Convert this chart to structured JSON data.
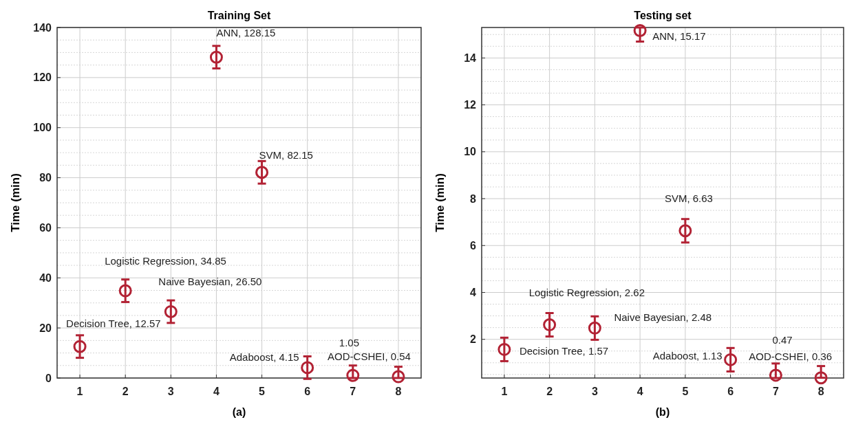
{
  "chart_data": [
    {
      "type": "scatter",
      "title": "Training Set",
      "xlabel": "(a)",
      "ylabel": "Time (min)",
      "x": [
        1,
        2,
        3,
        4,
        5,
        6,
        7,
        8
      ],
      "xlim": [
        0.5,
        8.5
      ],
      "xticks": [
        1,
        2,
        3,
        4,
        5,
        6,
        7,
        8
      ],
      "ylim": [
        0,
        140
      ],
      "yticks": [
        0,
        20,
        40,
        60,
        80,
        100,
        120,
        140
      ],
      "grid": true,
      "marker": "circle",
      "series": [
        {
          "color": "#b22234",
          "values": [
            12.57,
            34.85,
            26.5,
            128.15,
            82.15,
            4.15,
            1.05,
            0.54
          ],
          "errors": [
            4.5,
            4.5,
            4.5,
            4.5,
            4.5,
            4.5,
            [
              0,
              5
            ],
            [
              0,
              4.5
            ]
          ]
        }
      ],
      "annotations": [
        {
          "text": "Decision Tree, 12.57",
          "x": 1,
          "y": 12.57
        },
        {
          "text": "Logistic Regression, 34.85",
          "x": 2,
          "y": 34.85
        },
        {
          "text": "Naive Bayesian, 26.50",
          "x": 3,
          "y": 26.5
        },
        {
          "text": "ANN, 128.15",
          "x": 4,
          "y": 128.15
        },
        {
          "text": "SVM, 82.15",
          "x": 5,
          "y": 82.15
        },
        {
          "text": "Adaboost, 4.15",
          "x": 6,
          "y": 4.15
        },
        {
          "text": "1.05",
          "x": 7,
          "y": 1.05
        },
        {
          "text": "AOD-CSHEI, 0.54",
          "x": 8,
          "y": 0.54
        }
      ]
    },
    {
      "type": "scatter",
      "title": "Testing set",
      "xlabel": "(b)",
      "ylabel": "Time (min)",
      "x": [
        1,
        2,
        3,
        4,
        5,
        6,
        7,
        8
      ],
      "xlim": [
        0.5,
        8.5
      ],
      "xticks": [
        1,
        2,
        3,
        4,
        5,
        6,
        7,
        8
      ],
      "ylim": [
        0.35,
        15.3
      ],
      "yticks": [
        2,
        4,
        6,
        8,
        10,
        12,
        14
      ],
      "grid": true,
      "marker": "circle",
      "series": [
        {
          "color": "#b22234",
          "values": [
            1.57,
            2.62,
            2.48,
            15.17,
            6.63,
            1.13,
            0.47,
            0.36
          ],
          "errors": [
            0.5,
            0.5,
            0.5,
            [
              14.7,
              15.3
            ],
            0.5,
            0.5,
            [
              0.35,
              0.97
            ],
            [
              0.36,
              0.86
            ]
          ]
        }
      ],
      "annotations": [
        {
          "text": "Decision Tree, 1.57",
          "x": 1,
          "y": 1.57
        },
        {
          "text": "Logistic Regression, 2.62",
          "x": 2,
          "y": 2.62
        },
        {
          "text": "Naive Bayesian, 2.48",
          "x": 3,
          "y": 2.48
        },
        {
          "text": "ANN, 15.17",
          "x": 4,
          "y": 15.17
        },
        {
          "text": "SVM, 6.63",
          "x": 5,
          "y": 6.63
        },
        {
          "text": "Adaboost, 1.13",
          "x": 6,
          "y": 1.13
        },
        {
          "text": "0.47",
          "x": 7,
          "y": 0.47
        },
        {
          "text": "AOD-CSHEI, 0.36",
          "x": 8,
          "y": 0.36
        }
      ]
    }
  ]
}
